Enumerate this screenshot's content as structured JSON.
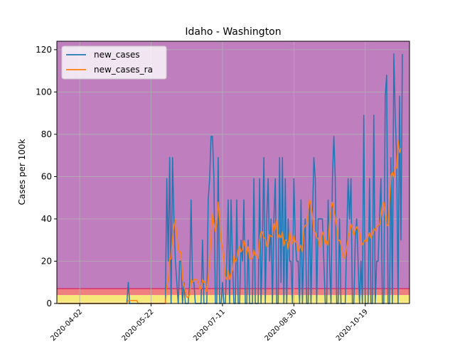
{
  "chart_data": {
    "type": "line",
    "title": "Idaho - Washington",
    "xlabel": "",
    "ylabel": "Cases per 100k",
    "x_start": "2020-03-18",
    "x_end": "2020-11-11",
    "xlim": [
      "2020-03-17",
      "2020-11-19"
    ],
    "ylim": [
      0,
      124
    ],
    "x_ticks": [
      "2020-04-02",
      "2020-05-22",
      "2020-07-11",
      "2020-08-30",
      "2020-10-19"
    ],
    "y_ticks": [
      0,
      20,
      40,
      60,
      80,
      100,
      120
    ],
    "grid": true,
    "legend": "upper-left",
    "bands": [
      {
        "from": 0,
        "to": 1,
        "color": "#fde98f"
      },
      {
        "from": 1,
        "to": 4,
        "color": "#f7e87a"
      },
      {
        "from": 4,
        "to": 7,
        "color": "#f07f7f"
      },
      {
        "from": 7,
        "to": 124,
        "color": "#bf7fbf"
      }
    ],
    "threshold_line": {
      "y": 7,
      "color": "#d6336c"
    },
    "series": [
      {
        "name": "new_cases",
        "color": "#1f77b4",
        "values": [
          0,
          0,
          0,
          0,
          0,
          0,
          0,
          0,
          0,
          0,
          0,
          0,
          0,
          0,
          0,
          0,
          0,
          0,
          0,
          0,
          0,
          0,
          0,
          0,
          0,
          0,
          0,
          0,
          0,
          0,
          0,
          0,
          0,
          0,
          0,
          0,
          0,
          0,
          0,
          0,
          0,
          0,
          0,
          0,
          0,
          0,
          0,
          0,
          0,
          10,
          0,
          0,
          0,
          0,
          0,
          0,
          0,
          0,
          0,
          0,
          0,
          0,
          0,
          0,
          0,
          0,
          0,
          0,
          0,
          0,
          0,
          0,
          0,
          0,
          0,
          0,
          59,
          20,
          69,
          0,
          69,
          40,
          20,
          10,
          0,
          20,
          20,
          0,
          10,
          0,
          0,
          0,
          10,
          49,
          10,
          10,
          0,
          0,
          0,
          0,
          0,
          30,
          0,
          0,
          0,
          49,
          59,
          79,
          79,
          59,
          0,
          0,
          69,
          0,
          0,
          10,
          0,
          0,
          20,
          49,
          0,
          49,
          20,
          0,
          0,
          49,
          0,
          0,
          30,
          20,
          49,
          0,
          0,
          30,
          0,
          0,
          0,
          59,
          0,
          0,
          0,
          59,
          0,
          30,
          69,
          0,
          40,
          59,
          20,
          40,
          0,
          40,
          59,
          0,
          0,
          69,
          10,
          69,
          0,
          59,
          0,
          40,
          20,
          20,
          0,
          59,
          30,
          20,
          20,
          0,
          49,
          0,
          30,
          40,
          0,
          0,
          49,
          0,
          40,
          69,
          59,
          0,
          40,
          40,
          40,
          40,
          20,
          0,
          0,
          49,
          20,
          0,
          59,
          79,
          59,
          0,
          0,
          40,
          0,
          0,
          0,
          0,
          30,
          59,
          40,
          59,
          0,
          0,
          30,
          40,
          20,
          0,
          20,
          0,
          89,
          0,
          0,
          0,
          59,
          0,
          0,
          89,
          0,
          20,
          20,
          40,
          59,
          0,
          0,
          98,
          108,
          0,
          0,
          69,
          0,
          118,
          89,
          69,
          0,
          98,
          30,
          118
        ]
      },
      {
        "name": "new_cases_ra",
        "color": "#ff7f0e",
        "values": [
          0,
          0,
          0,
          0,
          0,
          0,
          0,
          0,
          0,
          0,
          0,
          0,
          0,
          0,
          0,
          0,
          0,
          0,
          0,
          0,
          0,
          0,
          0,
          0,
          0,
          0,
          0,
          0,
          0,
          0,
          0,
          0,
          0,
          0,
          0,
          0,
          0,
          0,
          0,
          0,
          0,
          0,
          0,
          0,
          0,
          0,
          0,
          0,
          0,
          1.4,
          1.4,
          1.4,
          1.4,
          1.4,
          1.4,
          1.4,
          0,
          0,
          0,
          0,
          0,
          0,
          0,
          0,
          0,
          0,
          0,
          0,
          0,
          0,
          0,
          0,
          0,
          0,
          0,
          0,
          8.4,
          11.3,
          21.1,
          21.1,
          31,
          36.7,
          39.6,
          32.6,
          25.7,
          24.3,
          24.3,
          11.4,
          8.6,
          5.7,
          2.9,
          2.9,
          4.3,
          11.4,
          10,
          11.4,
          11.4,
          11.4,
          10,
          7,
          7,
          11.3,
          10,
          10,
          5.7,
          12.7,
          19.9,
          30.9,
          42.3,
          38,
          33.9,
          38.1,
          48,
          39.4,
          29.4,
          26.6,
          20.9,
          12.9,
          11.3,
          15.6,
          11.3,
          14.1,
          15.6,
          22.6,
          19.7,
          21.1,
          25.4,
          27,
          24.3,
          25.7,
          29.9,
          26.9,
          23.1,
          26.9,
          21.3,
          21.3,
          21.3,
          25.4,
          22.8,
          22.8,
          21.3,
          29.9,
          33.9,
          33.9,
          31.1,
          30.9,
          27,
          26.9,
          32.6,
          31.6,
          31.7,
          37.7,
          34.9,
          39.7,
          30.9,
          32.6,
          31,
          34,
          27.2,
          30,
          30,
          25.5,
          33.9,
          29.5,
          28,
          32.2,
          29,
          29.3,
          24.5,
          26,
          27.7,
          24.3,
          35.6,
          37,
          37,
          42.6,
          49.1,
          46.5,
          41.6,
          33.9,
          33.9,
          30.9,
          30.9,
          26.9,
          27.1,
          34,
          32.1,
          28,
          30,
          27.3,
          38.9,
          45.1,
          47.9,
          44.6,
          40.9,
          36.4,
          29.6,
          30.1,
          27.4,
          24.3,
          21.3,
          21.9,
          26.7,
          30.8,
          34.5,
          37.6,
          35,
          32.1,
          34.6,
          36.4,
          34.9,
          33.4,
          28.2,
          27.7,
          29.1,
          30.1,
          29.2,
          31.6,
          33.5,
          30.7,
          32.4,
          35.5,
          34.3,
          36.2,
          37,
          37.2,
          41.4,
          47,
          47.9,
          41.6,
          37.3,
          36.7,
          48.6,
          60.4,
          62.2,
          59.7,
          64.4,
          63.9,
          77.1,
          71.3,
          73.6
        ]
      }
    ]
  }
}
